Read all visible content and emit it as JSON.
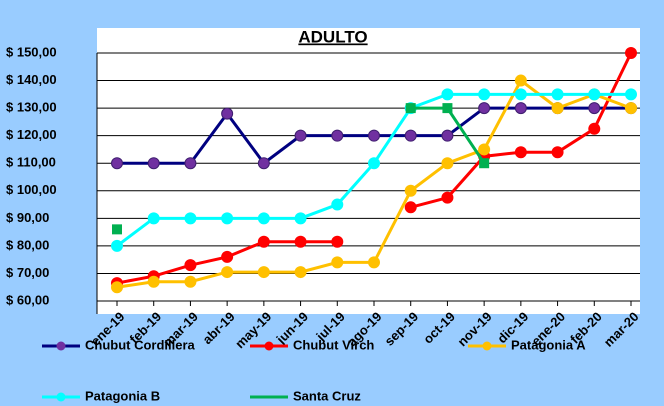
{
  "chart_data": {
    "type": "line",
    "title": "ADULTO",
    "categories": [
      "ene-19",
      "feb-19",
      "mar-19",
      "abr-19",
      "may-19",
      "jun-19",
      "jul-19",
      "ago-19",
      "sep-19",
      "oct-19",
      "nov-19",
      "dic-19",
      "ene-20",
      "feb-20",
      "mar-20"
    ],
    "series": [
      {
        "name": "Chubut Cordillera",
        "color": "#000080",
        "marker_color": "#7030a0",
        "marker": "circle",
        "values": [
          110,
          110,
          110,
          128,
          110,
          120,
          120,
          120,
          120,
          120,
          130,
          130,
          130,
          130,
          130
        ]
      },
      {
        "name": "Chubut Virch",
        "color": "#ff0000",
        "marker_color": "#ff0000",
        "marker": "circle",
        "values": [
          66.5,
          69,
          73,
          76,
          81.5,
          81.5,
          81.5,
          null,
          94,
          97.5,
          112.5,
          114,
          114,
          122.5,
          150
        ]
      },
      {
        "name": "Patagonia A",
        "color": "#ffc000",
        "marker_color": "#ffc000",
        "marker": "circle",
        "values": [
          65,
          67,
          67,
          70.5,
          70.5,
          70.5,
          74,
          74,
          100,
          110,
          115,
          140,
          130,
          135,
          130
        ]
      },
      {
        "name": "Patagonia B",
        "color": "#00ffff",
        "marker_color": "#00ffff",
        "marker": "circle",
        "values": [
          80,
          90,
          90,
          90,
          90,
          90,
          95,
          110,
          130,
          135,
          135,
          135,
          135,
          135,
          135
        ]
      },
      {
        "name": "Santa Cruz",
        "color": "#00b050",
        "marker_color": "#00b050",
        "marker": "square",
        "values": [
          86,
          null,
          null,
          null,
          null,
          null,
          null,
          null,
          130,
          130,
          110,
          null,
          null,
          null,
          null
        ]
      }
    ],
    "ylim": [
      60,
      150
    ],
    "yticks": [
      {
        "value": 60,
        "label": "$ 60,00"
      },
      {
        "value": 70,
        "label": "$ 70,00"
      },
      {
        "value": 80,
        "label": "$ 80,00"
      },
      {
        "value": 90,
        "label": "$ 90,00"
      },
      {
        "value": 100,
        "label": "$ 100,00"
      },
      {
        "value": 110,
        "label": "$ 110,00"
      },
      {
        "value": 120,
        "label": "$ 120,00"
      },
      {
        "value": 130,
        "label": "$ 130,00"
      },
      {
        "value": 140,
        "label": "$ 140,00"
      },
      {
        "value": 150,
        "label": "$ 150,00"
      }
    ],
    "grid": true,
    "legend": "bottom"
  }
}
